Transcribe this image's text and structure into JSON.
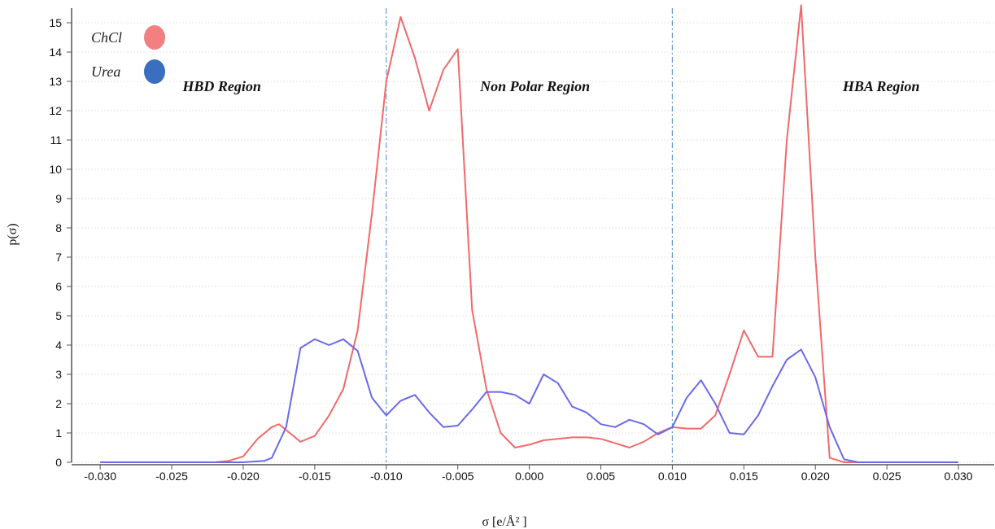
{
  "chart_data": {
    "type": "line",
    "xlabel": "σ [e/Å² ]",
    "ylabel": "p(σ)",
    "xlim": [
      -0.032,
      0.0325
    ],
    "ylim": [
      0,
      15.5
    ],
    "x_ticks": [
      -0.03,
      -0.025,
      -0.02,
      -0.015,
      -0.01,
      -0.005,
      0.0,
      0.005,
      0.01,
      0.015,
      0.02,
      0.025,
      0.03
    ],
    "x_tick_labels": [
      "-0.030",
      "-0.025",
      "-0.020",
      "-0.015",
      "-0.010",
      "-0.005",
      "0.000",
      "0.005",
      "0.010",
      "0.015",
      "0.020",
      "0.025",
      "0.030"
    ],
    "y_ticks": [
      0,
      1,
      2,
      3,
      4,
      5,
      6,
      7,
      8,
      9,
      10,
      11,
      12,
      13,
      14,
      15
    ],
    "y_tick_labels": [
      "0",
      "1",
      "2",
      "3",
      "4",
      "5",
      "6",
      "7",
      "8",
      "9",
      "10",
      "11",
      "12",
      "13",
      "14",
      "15"
    ],
    "grid": true,
    "legend_position": "top-left",
    "region_dividers": [
      -0.01,
      0.01
    ],
    "regions": [
      {
        "label": "HBD Region",
        "x": -0.0215
      },
      {
        "label": "Non Polar Region",
        "x": 0.0004
      },
      {
        "label": "HBA Region",
        "x": 0.0246
      }
    ],
    "series": [
      {
        "name": "ChCl",
        "color": "#f06a6a",
        "marker_color": "#f28080",
        "x": [
          -0.03,
          -0.025,
          -0.022,
          -0.021,
          -0.02,
          -0.019,
          -0.018,
          -0.0175,
          -0.017,
          -0.016,
          -0.015,
          -0.014,
          -0.013,
          -0.012,
          -0.011,
          -0.01,
          -0.009,
          -0.008,
          -0.007,
          -0.006,
          -0.005,
          -0.004,
          -0.003,
          -0.002,
          -0.001,
          0.0,
          0.001,
          0.002,
          0.003,
          0.004,
          0.005,
          0.006,
          0.007,
          0.008,
          0.009,
          0.01,
          0.011,
          0.012,
          0.013,
          0.014,
          0.015,
          0.016,
          0.017,
          0.018,
          0.019,
          0.02,
          0.021,
          0.022,
          0.025,
          0.03
        ],
        "values": [
          0,
          0,
          0,
          0.05,
          0.2,
          0.8,
          1.2,
          1.3,
          1.1,
          0.7,
          0.9,
          1.6,
          2.5,
          4.5,
          8.5,
          13.0,
          15.2,
          13.8,
          12.0,
          13.4,
          14.1,
          5.2,
          2.5,
          1.0,
          0.5,
          0.6,
          0.75,
          0.8,
          0.85,
          0.85,
          0.8,
          0.65,
          0.5,
          0.7,
          1.0,
          1.2,
          1.15,
          1.15,
          1.6,
          3.0,
          4.5,
          3.6,
          3.6,
          11.0,
          15.6,
          7.0,
          0.15,
          0,
          0,
          0
        ]
      },
      {
        "name": "Urea",
        "color": "#6a6aea",
        "marker_color": "#3a6fbf",
        "x": [
          -0.03,
          -0.025,
          -0.02,
          -0.0185,
          -0.018,
          -0.017,
          -0.016,
          -0.015,
          -0.014,
          -0.013,
          -0.012,
          -0.011,
          -0.01,
          -0.009,
          -0.008,
          -0.007,
          -0.006,
          -0.005,
          -0.004,
          -0.003,
          -0.002,
          -0.001,
          0.0,
          0.001,
          0.002,
          0.003,
          0.004,
          0.005,
          0.006,
          0.007,
          0.008,
          0.009,
          0.01,
          0.011,
          0.012,
          0.013,
          0.014,
          0.015,
          0.016,
          0.017,
          0.018,
          0.019,
          0.02,
          0.021,
          0.022,
          0.023,
          0.025,
          0.03
        ],
        "values": [
          0,
          0,
          0,
          0.05,
          0.15,
          1.2,
          3.9,
          4.2,
          4.0,
          4.2,
          3.8,
          2.2,
          1.6,
          2.1,
          2.3,
          1.7,
          1.2,
          1.25,
          1.8,
          2.4,
          2.4,
          2.3,
          2.0,
          3.0,
          2.7,
          1.9,
          1.7,
          1.3,
          1.2,
          1.45,
          1.3,
          0.95,
          1.2,
          2.2,
          2.8,
          2.0,
          1.0,
          0.95,
          1.6,
          2.6,
          3.5,
          3.85,
          2.9,
          1.2,
          0.1,
          0,
          0,
          0
        ]
      }
    ]
  }
}
